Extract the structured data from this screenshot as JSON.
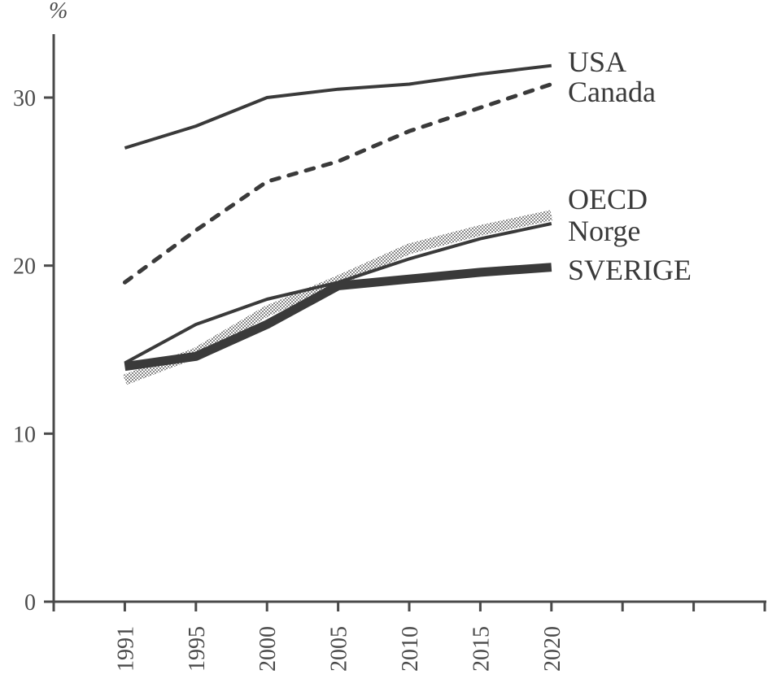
{
  "chart_data": {
    "type": "line",
    "title": "",
    "xlabel": "",
    "ylabel": "%",
    "ylim": [
      0,
      30
    ],
    "yticks": [
      0,
      10,
      20,
      30
    ],
    "ytick_labels": [
      "0",
      "10",
      "20",
      "30"
    ],
    "x": [
      1991,
      1995,
      2000,
      2005,
      2010,
      2015,
      2020
    ],
    "xtick_labels": [
      "1991",
      "1995",
      "2000",
      "2005",
      "2010",
      "2015",
      "2020"
    ],
    "x_slots": 10,
    "grid": false,
    "legend_placement": "right, inline at line ends",
    "series": [
      {
        "name": "USA",
        "style": "solid-thin",
        "color": "#3a3a3a",
        "values": [
          27.0,
          28.3,
          30.0,
          30.5,
          30.8,
          31.4,
          31.9
        ]
      },
      {
        "name": "Canada",
        "style": "dashed",
        "color": "#3a3a3a",
        "values": [
          19.0,
          22.1,
          25.0,
          26.2,
          28.0,
          29.4,
          30.8
        ]
      },
      {
        "name": "OECD",
        "style": "stippled-thick",
        "color": "#a8a8a8",
        "values": [
          13.2,
          14.8,
          17.3,
          19.1,
          21.0,
          22.1,
          23.0
        ]
      },
      {
        "name": "Norge",
        "style": "solid-thin",
        "color": "#3a3a3a",
        "values": [
          14.2,
          16.5,
          18.0,
          19.0,
          20.4,
          21.6,
          22.5
        ]
      },
      {
        "name": "SVERIGE",
        "style": "solid-thick",
        "color": "#3a3a3a",
        "values": [
          14.0,
          14.6,
          16.5,
          18.8,
          19.2,
          19.6,
          19.9
        ]
      }
    ]
  }
}
